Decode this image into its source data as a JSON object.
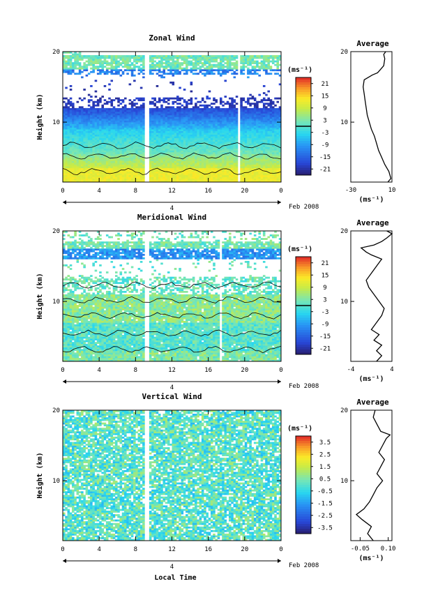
{
  "chart_data": [
    {
      "type": "heatmap",
      "title": "Zonal Wind",
      "ylabel": "Height (km)",
      "xlabel": "",
      "date_label": "Feb 2008",
      "day_label": "4",
      "x_ticks": [
        "0",
        "4",
        "8",
        "12",
        "16",
        "20",
        "0"
      ],
      "y_ticks": [
        "10",
        "20"
      ],
      "ylim": [
        1.5,
        20
      ],
      "colorbar": {
        "unit": "(ms⁻¹)",
        "ticks": [
          "21",
          "15",
          "9",
          "3",
          "-3",
          "-9",
          "-15",
          "-21"
        ],
        "range": [
          -24,
          24
        ],
        "zero_line": 0
      },
      "gap_hours": [
        [
          8.9,
          9.5
        ],
        [
          19.2,
          19.5
        ]
      ],
      "profile": {
        "title": "Average",
        "x_ticks": [
          "-30",
          "10"
        ],
        "xlim": [
          -30,
          10
        ],
        "unit": "(ms⁻¹)",
        "y_ticks": [
          "10",
          "20"
        ],
        "points": [
          [
            6,
            1.5
          ],
          [
            9,
            2.0
          ],
          [
            7,
            3.0
          ],
          [
            3,
            4.0
          ],
          [
            0,
            5.0
          ],
          [
            -3,
            6.0
          ],
          [
            -5,
            7.0
          ],
          [
            -7,
            8.0
          ],
          [
            -10,
            9.0
          ],
          [
            -12,
            10.0
          ],
          [
            -14,
            11.0
          ],
          [
            -15,
            12.0
          ],
          [
            -16,
            13.0
          ],
          [
            -17,
            14.0
          ],
          [
            -18,
            15.0
          ],
          [
            -17,
            16.0
          ],
          [
            -9,
            16.7
          ],
          [
            -4,
            17.0
          ],
          [
            -1,
            17.5
          ],
          [
            2,
            18.0
          ],
          [
            3,
            19.0
          ],
          [
            2,
            19.6
          ],
          [
            4,
            20.0
          ]
        ]
      }
    },
    {
      "type": "heatmap",
      "title": "Meridional Wind",
      "ylabel": "Height (km)",
      "xlabel": "",
      "date_label": "Feb 2008",
      "day_label": "4",
      "x_ticks": [
        "0",
        "4",
        "8",
        "12",
        "16",
        "20",
        "0"
      ],
      "y_ticks": [
        "10",
        "20"
      ],
      "ylim": [
        1.5,
        20
      ],
      "colorbar": {
        "unit": "(ms⁻¹)",
        "ticks": [
          "21",
          "15",
          "9",
          "3",
          "-3",
          "-9",
          "-15",
          "-21"
        ],
        "range": [
          -24,
          24
        ],
        "zero_line": 0
      },
      "gap_hours": [
        [
          8.9,
          9.5
        ],
        [
          17.3,
          17.6
        ]
      ],
      "profile": {
        "title": "Average",
        "x_ticks": [
          "-4",
          "4"
        ],
        "xlim": [
          -4,
          4
        ],
        "unit": "(ms⁻¹)",
        "y_ticks": [
          "10",
          "20"
        ],
        "points": [
          [
            1.0,
            1.5
          ],
          [
            2.0,
            2.3
          ],
          [
            1.0,
            3.0
          ],
          [
            2.0,
            3.8
          ],
          [
            0.5,
            4.5
          ],
          [
            1.5,
            5.3
          ],
          [
            0.0,
            6.0
          ],
          [
            1.0,
            7.0
          ],
          [
            2.0,
            8.0
          ],
          [
            2.5,
            9.0
          ],
          [
            1.5,
            10.0
          ],
          [
            0.5,
            11.0
          ],
          [
            -0.5,
            12.0
          ],
          [
            -1.0,
            13.0
          ],
          [
            0.0,
            14.0
          ],
          [
            1.0,
            15.0
          ],
          [
            2.0,
            16.0
          ],
          [
            0.0,
            16.6
          ],
          [
            -1.0,
            17.0
          ],
          [
            -2.0,
            17.6
          ],
          [
            0.5,
            18.0
          ],
          [
            2.0,
            18.5
          ],
          [
            3.0,
            19.0
          ],
          [
            4.0,
            19.6
          ],
          [
            3.0,
            20.0
          ]
        ]
      }
    },
    {
      "type": "heatmap",
      "title": "Vertical Wind",
      "ylabel": "Height (km)",
      "xlabel": "Local Time",
      "date_label": "Feb 2008",
      "day_label": "4",
      "x_ticks": [
        "0",
        "4",
        "8",
        "12",
        "16",
        "20",
        "0"
      ],
      "y_ticks": [
        "10",
        "20"
      ],
      "ylim": [
        1.5,
        20
      ],
      "colorbar": {
        "unit": "(ms⁻¹)",
        "ticks": [
          "3.5",
          "2.5",
          "1.5",
          "0.5",
          "-0.5",
          "-1.5",
          "-2.5",
          "-3.5"
        ],
        "range": [
          -4,
          4
        ]
      },
      "gap_hours": [
        [
          8.9,
          9.5
        ]
      ],
      "profile": {
        "title": "Average",
        "x_ticks": [
          "-0.05",
          "0.10"
        ],
        "xlim": [
          -0.1,
          0.12
        ],
        "unit": "(ms⁻¹)",
        "y_ticks": [
          "10",
          "20"
        ],
        "points": [
          [
            0.02,
            1.5
          ],
          [
            -0.01,
            2.5
          ],
          [
            0.01,
            3.5
          ],
          [
            -0.04,
            4.5
          ],
          [
            -0.07,
            5.2
          ],
          [
            -0.03,
            6.0
          ],
          [
            0.0,
            7.0
          ],
          [
            0.02,
            8.0
          ],
          [
            0.04,
            9.0
          ],
          [
            0.07,
            10.0
          ],
          [
            0.04,
            11.0
          ],
          [
            0.06,
            12.0
          ],
          [
            0.08,
            13.0
          ],
          [
            0.05,
            14.0
          ],
          [
            0.07,
            15.0
          ],
          [
            0.09,
            16.0
          ],
          [
            0.11,
            16.5
          ],
          [
            0.06,
            17.0
          ],
          [
            0.04,
            18.0
          ],
          [
            0.02,
            19.0
          ],
          [
            0.03,
            20.0
          ]
        ]
      }
    }
  ]
}
